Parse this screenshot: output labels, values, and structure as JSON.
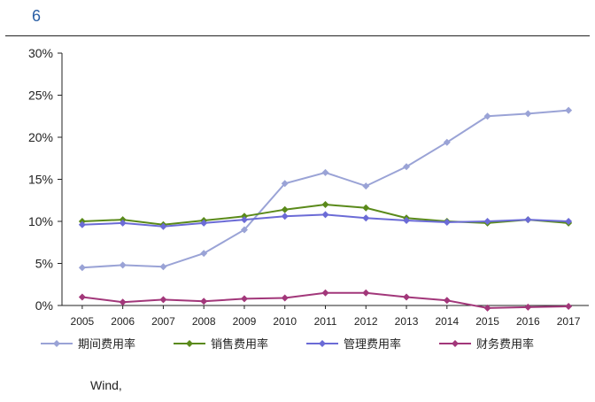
{
  "page": {
    "number": "6",
    "source_label": "Wind,"
  },
  "chart_data": {
    "type": "line",
    "title": "",
    "xlabel": "",
    "ylabel": "",
    "ylim": [
      0,
      30
    ],
    "y_ticks": [
      "0%",
      "5%",
      "10%",
      "15%",
      "20%",
      "25%",
      "30%"
    ],
    "x": [
      "2005",
      "2006",
      "2007",
      "2008",
      "2009",
      "2010",
      "2011",
      "2012",
      "2013",
      "2014",
      "2015",
      "2016",
      "2017"
    ],
    "legend": {
      "placement": "bottom",
      "entries": [
        "期间费用率",
        "销售费用率",
        "管理费用率",
        "财务费用率"
      ]
    },
    "series": [
      {
        "name": "期间费用率",
        "color": "#9aa3d6",
        "values": [
          4.5,
          4.8,
          4.6,
          6.2,
          9.0,
          14.5,
          15.8,
          14.2,
          16.5,
          19.4,
          22.5,
          22.8,
          23.2
        ]
      },
      {
        "name": "销售费用率",
        "color": "#5a8a1a",
        "values": [
          10.0,
          10.2,
          9.6,
          10.1,
          10.6,
          11.4,
          12.0,
          11.6,
          10.4,
          10.0,
          9.8,
          10.2,
          9.8
        ]
      },
      {
        "name": "管理费用率",
        "color": "#6b6bd6",
        "values": [
          9.6,
          9.8,
          9.4,
          9.8,
          10.2,
          10.6,
          10.8,
          10.4,
          10.1,
          9.9,
          10.0,
          10.2,
          10.0
        ]
      },
      {
        "name": "财务费用率",
        "color": "#a2377a",
        "values": [
          1.0,
          0.4,
          0.7,
          0.5,
          0.8,
          0.9,
          1.5,
          1.5,
          1.0,
          0.6,
          -0.3,
          -0.2,
          -0.1
        ]
      }
    ]
  }
}
